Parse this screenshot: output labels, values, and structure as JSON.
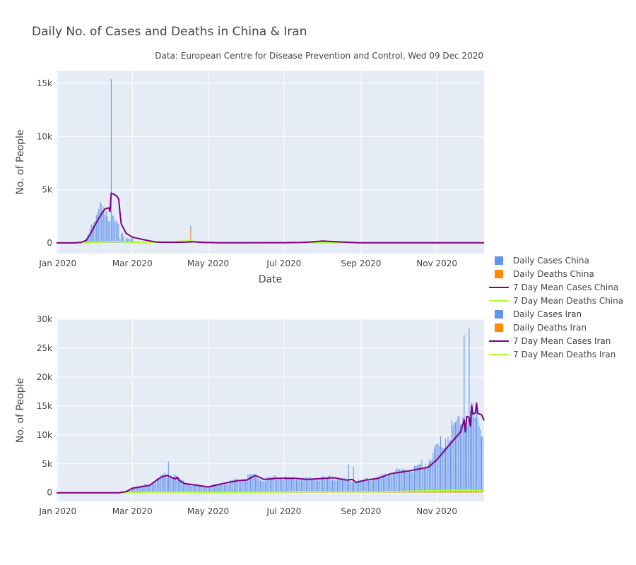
{
  "chart_data": {
    "type": "bar+line",
    "title": "Daily No. of Cases and Deaths in China & Iran",
    "subtitle": "Data: European Centre for Disease Prevention and Control, Wed 09 Dec 2020",
    "legend_position": "right",
    "legend": [
      {
        "name": "Daily Cases China",
        "kind": "bar",
        "color": "#6495ED"
      },
      {
        "name": "Daily Deaths China",
        "kind": "bar",
        "color": "#FF8C00"
      },
      {
        "name": "7 Day Mean Cases China",
        "kind": "line",
        "color": "#800080"
      },
      {
        "name": "7 Day Mean Deaths China",
        "kind": "line",
        "color": "#ADFF2F"
      },
      {
        "name": "Daily Cases Iran",
        "kind": "bar",
        "color": "#6495ED"
      },
      {
        "name": "Daily Deaths Iran",
        "kind": "bar",
        "color": "#FF8C00"
      },
      {
        "name": "7 Day Mean Cases Iran",
        "kind": "line",
        "color": "#800080"
      },
      {
        "name": "7 Day Mean Deaths Iran",
        "kind": "line",
        "color": "#ADFF2F"
      }
    ],
    "colors": {
      "plot_bg": "#E5ECF6",
      "grid": "#ffffff",
      "cases_bar": "#6495ED",
      "deaths_bar": "#FF8C00",
      "mean_cases": "#800080",
      "mean_deaths": "#ADFF2F"
    },
    "x_ticks": [
      "Jan 2020",
      "Mar 2020",
      "May 2020",
      "Jul 2020",
      "Sep 2020",
      "Nov 2020"
    ],
    "x_tick_dates": [
      "2020-01-01",
      "2020-03-01",
      "2020-05-01",
      "2020-07-01",
      "2020-09-01",
      "2020-11-01"
    ],
    "x_range": [
      "2019-12-31",
      "2020-12-09"
    ],
    "charts": [
      {
        "country": "China",
        "xlabel": "Date",
        "ylabel": "No. of People",
        "ylim": [
          -1000,
          16200
        ],
        "y_ticks": [
          0,
          5000,
          10000,
          15000
        ],
        "y_tick_labels": [
          "0",
          "5k",
          "10k",
          "15k"
        ],
        "daily_cases": [
          [
            "2020-01-18",
            20
          ],
          [
            "2020-01-20",
            80
          ],
          [
            "2020-01-22",
            150
          ],
          [
            "2020-01-23",
            250
          ],
          [
            "2020-01-24",
            450
          ],
          [
            "2020-01-25",
            700
          ],
          [
            "2020-01-26",
            800
          ],
          [
            "2020-01-27",
            1300
          ],
          [
            "2020-01-28",
            1750
          ],
          [
            "2020-01-29",
            1650
          ],
          [
            "2020-01-30",
            1950
          ],
          [
            "2020-01-31",
            2050
          ],
          [
            "2020-02-01",
            2600
          ],
          [
            "2020-02-02",
            2800
          ],
          [
            "2020-02-03",
            3200
          ],
          [
            "2020-02-04",
            3850
          ],
          [
            "2020-02-05",
            3700
          ],
          [
            "2020-02-06",
            3100
          ],
          [
            "2020-02-07",
            3400
          ],
          [
            "2020-02-08",
            2650
          ],
          [
            "2020-02-09",
            3000
          ],
          [
            "2020-02-10",
            2500
          ],
          [
            "2020-02-11",
            2050
          ],
          [
            "2020-02-12",
            2000
          ],
          [
            "2020-02-13",
            15400
          ],
          [
            "2020-02-14",
            2600
          ],
          [
            "2020-02-15",
            2500
          ],
          [
            "2020-02-16",
            2000
          ],
          [
            "2020-02-17",
            2100
          ],
          [
            "2020-02-18",
            1900
          ],
          [
            "2020-02-19",
            1750
          ],
          [
            "2020-02-20",
            400
          ],
          [
            "2020-02-21",
            900
          ],
          [
            "2020-02-22",
            900
          ],
          [
            "2020-02-23",
            650
          ],
          [
            "2020-02-24",
            200
          ],
          [
            "2020-02-25",
            500
          ],
          [
            "2020-02-26",
            400
          ],
          [
            "2020-02-27",
            430
          ],
          [
            "2020-02-28",
            330
          ],
          [
            "2020-02-29",
            430
          ],
          [
            "2020-03-01",
            570
          ],
          [
            "2020-03-02",
            200
          ],
          [
            "2020-03-03",
            125
          ],
          [
            "2020-03-04",
            120
          ],
          [
            "2020-03-05",
            140
          ],
          [
            "2020-03-06",
            100
          ],
          [
            "2020-03-08",
            44
          ],
          [
            "2020-03-10",
            20
          ],
          [
            "2020-03-15",
            30
          ],
          [
            "2020-03-20",
            40
          ],
          [
            "2020-03-25",
            60
          ],
          [
            "2020-04-01",
            50
          ],
          [
            "2020-04-10",
            50
          ],
          [
            "2020-04-15",
            90
          ],
          [
            "2020-04-17",
            1600
          ],
          [
            "2020-04-18",
            30
          ],
          [
            "2020-04-25",
            12
          ],
          [
            "2020-05-10",
            10
          ],
          [
            "2020-06-15",
            40
          ],
          [
            "2020-07-25",
            60
          ],
          [
            "2020-08-01",
            120
          ],
          [
            "2020-08-10",
            40
          ],
          [
            "2020-10-15",
            20
          ],
          [
            "2020-11-20",
            20
          ]
        ],
        "daily_deaths": [
          [
            "2020-01-25",
            15
          ],
          [
            "2020-01-30",
            40
          ],
          [
            "2020-02-05",
            70
          ],
          [
            "2020-02-10",
            100
          ],
          [
            "2020-02-14",
            140
          ],
          [
            "2020-02-18",
            130
          ],
          [
            "2020-02-23",
            100
          ],
          [
            "2020-02-28",
            50
          ],
          [
            "2020-03-05",
            30
          ],
          [
            "2020-04-17",
            1290
          ]
        ],
        "mean_cases": [
          [
            "2019-12-31",
            0
          ],
          [
            "2020-01-15",
            5
          ],
          [
            "2020-01-20",
            60
          ],
          [
            "2020-01-24",
            250
          ],
          [
            "2020-01-28",
            1000
          ],
          [
            "2020-02-01",
            1900
          ],
          [
            "2020-02-05",
            2700
          ],
          [
            "2020-02-08",
            3200
          ],
          [
            "2020-02-11",
            3300
          ],
          [
            "2020-02-12",
            2950
          ],
          [
            "2020-02-13",
            4700
          ],
          [
            "2020-02-17",
            4450
          ],
          [
            "2020-02-19",
            4150
          ],
          [
            "2020-02-20",
            2900
          ],
          [
            "2020-02-21",
            1800
          ],
          [
            "2020-02-25",
            900
          ],
          [
            "2020-03-01",
            550
          ],
          [
            "2020-03-10",
            300
          ],
          [
            "2020-03-20",
            80
          ],
          [
            "2020-04-01",
            40
          ],
          [
            "2020-04-15",
            80
          ],
          [
            "2020-04-17",
            110
          ],
          [
            "2020-04-25",
            60
          ],
          [
            "2020-05-10",
            10
          ],
          [
            "2020-07-01",
            20
          ],
          [
            "2020-07-15",
            50
          ],
          [
            "2020-07-25",
            100
          ],
          [
            "2020-08-01",
            180
          ],
          [
            "2020-08-10",
            120
          ],
          [
            "2020-09-01",
            10
          ],
          [
            "2020-12-09",
            10
          ]
        ],
        "mean_deaths": [
          [
            "2019-12-31",
            0
          ],
          [
            "2020-01-22",
            5
          ],
          [
            "2020-02-01",
            40
          ],
          [
            "2020-02-10",
            100
          ],
          [
            "2020-02-18",
            120
          ],
          [
            "2020-02-28",
            60
          ],
          [
            "2020-03-10",
            20
          ],
          [
            "2020-04-17",
            190
          ],
          [
            "2020-04-25",
            5
          ],
          [
            "2020-12-09",
            0
          ]
        ]
      },
      {
        "country": "Iran",
        "xlabel": "",
        "ylabel": "No. of People",
        "ylim": [
          -1500,
          30000
        ],
        "y_ticks": [
          0,
          5000,
          10000,
          15000,
          20000,
          25000,
          30000
        ],
        "y_tick_labels": [
          "0",
          "5k",
          "10k",
          "15k",
          "20k",
          "25k",
          "30k"
        ],
        "daily_cases_segments": [
          [
            "2020-02-22",
            30
          ],
          [
            "2020-03-01",
            800
          ],
          [
            "2020-03-07",
            1100
          ],
          [
            "2020-03-14",
            1400
          ],
          [
            "2020-03-20",
            2000
          ],
          [
            "2020-03-27",
            3000
          ],
          [
            "2020-04-02",
            3000
          ],
          [
            "2020-04-10",
            2000
          ],
          [
            "2020-04-20",
            1300
          ],
          [
            "2020-05-01",
            1000
          ],
          [
            "2020-05-12",
            1600
          ],
          [
            "2020-05-25",
            2200
          ],
          [
            "2020-06-05",
            3000
          ],
          [
            "2020-06-15",
            2300
          ],
          [
            "2020-06-25",
            2600
          ],
          [
            "2020-07-05",
            2500
          ],
          [
            "2020-07-20",
            2400
          ],
          [
            "2020-08-05",
            2600
          ],
          [
            "2020-08-20",
            2200
          ],
          [
            "2020-09-01",
            2000
          ],
          [
            "2020-09-15",
            2600
          ],
          [
            "2020-09-25",
            3500
          ],
          [
            "2020-10-05",
            3800
          ],
          [
            "2020-10-15",
            4200
          ],
          [
            "2020-10-25",
            5500
          ],
          [
            "2020-11-01",
            7500
          ],
          [
            "2020-11-10",
            10000
          ],
          [
            "2020-11-20",
            13000
          ],
          [
            "2020-11-28",
            13500
          ],
          [
            "2020-12-09",
            11500
          ]
        ],
        "daily_cases_spikes": [
          [
            "2020-03-30",
            5400
          ],
          [
            "2020-08-22",
            4900
          ],
          [
            "2020-08-26",
            4500
          ],
          [
            "2020-11-23",
            27300
          ],
          [
            "2020-11-27",
            28500
          ],
          [
            "2020-11-30",
            15500
          ]
        ],
        "daily_deaths_segments": [
          [
            "2020-02-22",
            5
          ],
          [
            "2020-03-20",
            140
          ],
          [
            "2020-04-05",
            130
          ],
          [
            "2020-05-01",
            70
          ],
          [
            "2020-06-15",
            120
          ],
          [
            "2020-07-20",
            220
          ],
          [
            "2020-08-10",
            180
          ],
          [
            "2020-09-15",
            170
          ],
          [
            "2020-10-15",
            300
          ],
          [
            "2020-11-10",
            420
          ],
          [
            "2020-11-25",
            470
          ],
          [
            "2020-12-09",
            330
          ]
        ],
        "mean_cases": [
          [
            "2019-12-31",
            0
          ],
          [
            "2020-02-19",
            0
          ],
          [
            "2020-02-25",
            200
          ],
          [
            "2020-03-01",
            800
          ],
          [
            "2020-03-10",
            1100
          ],
          [
            "2020-03-15",
            1300
          ],
          [
            "2020-03-20",
            2100
          ],
          [
            "2020-03-25",
            2800
          ],
          [
            "2020-03-29",
            3000
          ],
          [
            "2020-04-03",
            2500
          ],
          [
            "2020-04-05",
            2400
          ],
          [
            "2020-04-06",
            2700
          ],
          [
            "2020-04-08",
            2100
          ],
          [
            "2020-04-12",
            1600
          ],
          [
            "2020-04-25",
            1200
          ],
          [
            "2020-05-01",
            1000
          ],
          [
            "2020-05-15",
            1700
          ],
          [
            "2020-05-25",
            2100
          ],
          [
            "2020-06-01",
            2200
          ],
          [
            "2020-06-08",
            3000
          ],
          [
            "2020-06-15",
            2300
          ],
          [
            "2020-06-25",
            2500
          ],
          [
            "2020-07-10",
            2500
          ],
          [
            "2020-07-20",
            2300
          ],
          [
            "2020-08-10",
            2600
          ],
          [
            "2020-08-20",
            2200
          ],
          [
            "2020-08-25",
            2300
          ],
          [
            "2020-08-28",
            1800
          ],
          [
            "2020-09-05",
            2200
          ],
          [
            "2020-09-15",
            2500
          ],
          [
            "2020-09-25",
            3300
          ],
          [
            "2020-10-10",
            3800
          ],
          [
            "2020-10-25",
            4400
          ],
          [
            "2020-11-01",
            5700
          ],
          [
            "2020-11-10",
            8000
          ],
          [
            "2020-11-20",
            10500
          ],
          [
            "2020-11-23",
            12600
          ],
          [
            "2020-11-24",
            10500
          ],
          [
            "2020-11-25",
            13200
          ],
          [
            "2020-11-27",
            13000
          ],
          [
            "2020-11-28",
            11500
          ],
          [
            "2020-11-29",
            15000
          ],
          [
            "2020-11-30",
            13600
          ],
          [
            "2020-12-02",
            13800
          ],
          [
            "2020-12-03",
            15500
          ],
          [
            "2020-12-04",
            13700
          ],
          [
            "2020-12-07",
            13500
          ],
          [
            "2020-12-09",
            12500
          ]
        ],
        "mean_deaths": [
          [
            "2019-12-31",
            0
          ],
          [
            "2020-02-22",
            0
          ],
          [
            "2020-03-20",
            130
          ],
          [
            "2020-04-10",
            110
          ],
          [
            "2020-05-01",
            60
          ],
          [
            "2020-06-15",
            110
          ],
          [
            "2020-07-20",
            200
          ],
          [
            "2020-09-15",
            160
          ],
          [
            "2020-10-15",
            280
          ],
          [
            "2020-11-10",
            400
          ],
          [
            "2020-11-25",
            460
          ],
          [
            "2020-12-09",
            320
          ]
        ]
      }
    ]
  }
}
